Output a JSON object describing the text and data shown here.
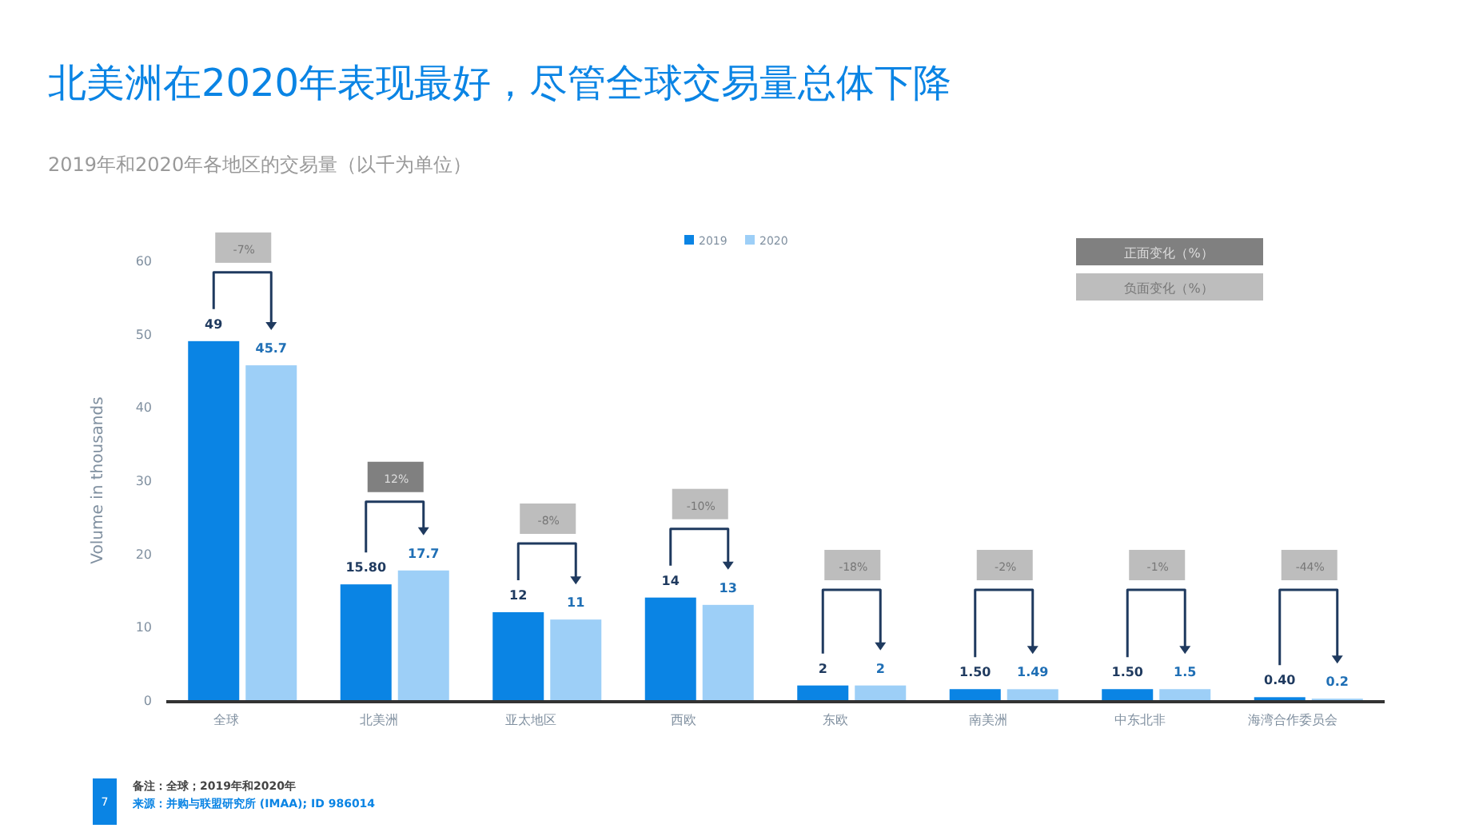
{
  "chart_data": {
    "type": "bar",
    "title": "北美洲在2020年表现最好，尽管全球交易量总体下降",
    "subtitle": "2019年和2020年各地区的交易量（以千为单位）",
    "ylabel": "Volume in thousands",
    "categories": [
      "全球",
      "北美洲",
      "亚太地区",
      "西欧",
      "东欧",
      "南美洲",
      "中东北非",
      "海湾合作委员会"
    ],
    "series": [
      {
        "name": "2019",
        "color": "#0a84e4",
        "values": [
          49,
          15.8,
          12,
          14,
          2,
          1.5,
          1.5,
          0.4
        ],
        "value_labels": [
          "49",
          "15.80",
          "12",
          "14",
          "2",
          "1.50",
          "1.50",
          "0.40"
        ]
      },
      {
        "name": "2020",
        "color": "#9dcff7",
        "values": [
          45.7,
          17.7,
          11,
          13,
          2,
          1.49,
          1.5,
          0.2
        ],
        "value_labels": [
          "45.7",
          "17.7",
          "11",
          "13",
          "2",
          "1.49",
          "1.5",
          "0.2"
        ]
      }
    ],
    "ylim": [
      0,
      60
    ],
    "yticks": [
      0,
      10,
      20,
      30,
      40,
      50,
      60
    ],
    "grid": false,
    "legend": "top",
    "annotations": [
      "-7%",
      "12%",
      "-8%",
      "-10%",
      "-18%",
      "-2%",
      "-1%",
      "-44%",
      "正面变化（%）",
      "负面变化（%）",
      "备注：全球；2019年和2020年",
      "来源：并购与联盟研究所 (IMAA); ID 986014",
      "7"
    ]
  }
}
